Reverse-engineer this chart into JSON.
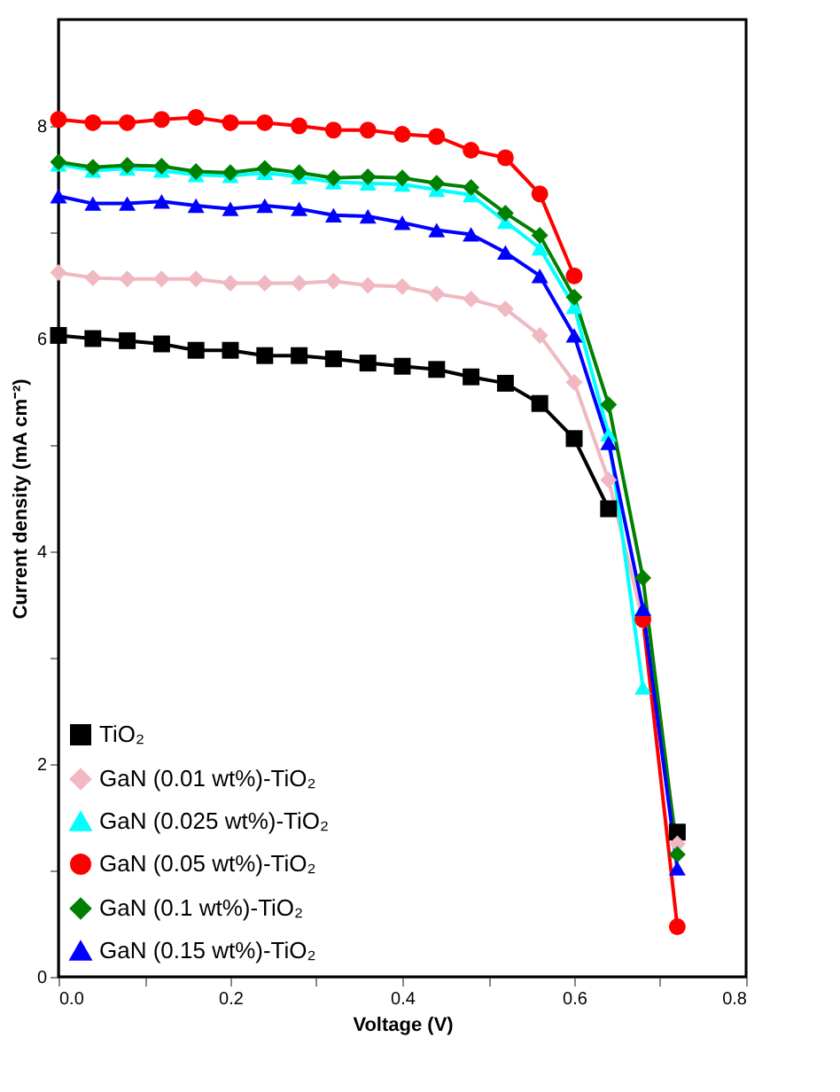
{
  "chart_data": {
    "type": "line",
    "xlabel": "Voltage (V)",
    "ylabel": "Current density (mA cm⁻²)",
    "x": [
      0,
      0.04,
      0.08,
      0.12,
      0.16,
      0.2,
      0.24,
      0.28,
      0.32,
      0.36,
      0.4,
      0.44,
      0.48,
      0.52,
      0.56,
      0.6,
      0.64,
      0.68,
      0.72
    ],
    "series": [
      {
        "name": "TiO₂",
        "color": "#000000",
        "marker": "square",
        "values": [
          6.03,
          6.0,
          5.98,
          5.95,
          5.89,
          5.89,
          5.84,
          5.84,
          5.81,
          5.77,
          5.74,
          5.71,
          5.64,
          5.58,
          5.39,
          5.06,
          4.4,
          null,
          1.36
        ]
      },
      {
        "name": "GaN (0.01 wt%)-TiO₂",
        "color": "#f0b8c0",
        "marker": "diamond",
        "values": [
          6.62,
          6.57,
          6.56,
          6.56,
          6.56,
          6.52,
          6.52,
          6.52,
          6.54,
          6.5,
          6.49,
          6.42,
          6.37,
          6.28,
          6.03,
          5.59,
          4.67,
          3.35,
          1.25
        ]
      },
      {
        "name": "GaN (0.025 wt%)-TiO₂",
        "color": "#00ffff",
        "marker": "triangle",
        "values": [
          7.64,
          7.58,
          7.6,
          7.58,
          7.54,
          7.53,
          7.56,
          7.52,
          7.47,
          7.46,
          7.45,
          7.4,
          7.35,
          7.1,
          6.85,
          6.3,
          5.1,
          2.72,
          null
        ]
      },
      {
        "name": "GaN (0.05 wt%)-TiO₂",
        "color": "#ff0000",
        "marker": "circle",
        "values": [
          8.06,
          8.03,
          8.03,
          8.06,
          8.08,
          8.03,
          8.03,
          8.0,
          7.96,
          7.96,
          7.92,
          7.9,
          7.77,
          7.7,
          7.36,
          6.59,
          null,
          3.36,
          0.47
        ]
      },
      {
        "name": "GaN (0.1 wt%)-TiO₂",
        "color": "#008000",
        "marker": "diamond",
        "values": [
          7.66,
          7.61,
          7.63,
          7.62,
          7.57,
          7.56,
          7.6,
          7.56,
          7.51,
          7.52,
          7.51,
          7.46,
          7.42,
          7.18,
          6.97,
          6.39,
          5.38,
          3.75,
          1.15
        ]
      },
      {
        "name": "GaN (0.15 wt%)-TiO₂",
        "color": "#0000ff",
        "marker": "triangle",
        "values": [
          7.34,
          7.27,
          7.27,
          7.29,
          7.25,
          7.22,
          7.25,
          7.22,
          7.16,
          7.15,
          7.09,
          7.02,
          6.98,
          6.81,
          6.59,
          6.03,
          5.02,
          3.46,
          1.02
        ]
      }
    ],
    "xlim": [
      0,
      0.8
    ],
    "ylim": [
      0,
      9
    ],
    "xticks": [
      {
        "value": 0,
        "label": "0.0"
      },
      {
        "value": 0.1,
        "label": null
      },
      {
        "value": 0.2,
        "label": "0.2"
      },
      {
        "value": 0.3,
        "label": null
      },
      {
        "value": 0.4,
        "label": "0.4"
      },
      {
        "value": 0.5,
        "label": null
      },
      {
        "value": 0.6,
        "label": "0.6"
      },
      {
        "value": 0.7,
        "label": null
      },
      {
        "value": 0.8,
        "label": "0.8"
      }
    ],
    "yticks": [
      0,
      {
        "value": 1,
        "label": null
      },
      2,
      {
        "value": 3,
        "label": null
      },
      4,
      {
        "value": 5,
        "label": null
      },
      6,
      {
        "value": 7,
        "label": null
      },
      8
    ],
    "legend": "bottom left",
    "grid": false,
    "line_style": "solid"
  }
}
